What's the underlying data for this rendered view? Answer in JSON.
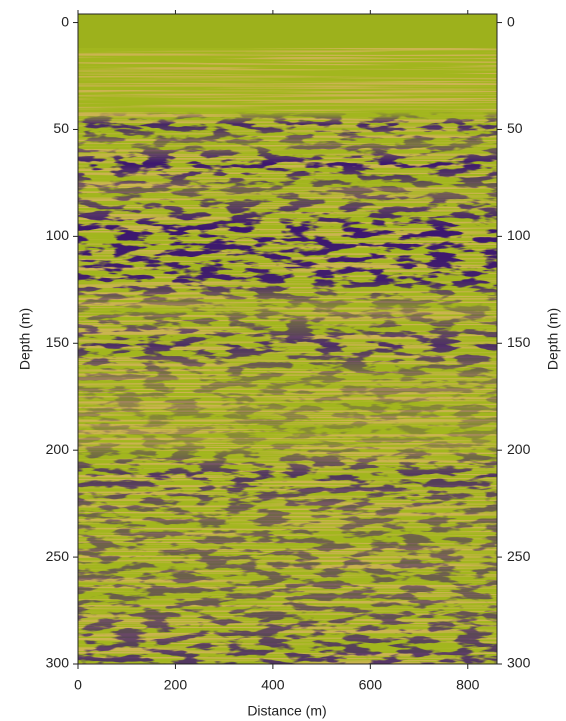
{
  "chart_data": {
    "type": "image",
    "x_label": "Distance (m)",
    "y_label": "Depth (m)",
    "xlim": [
      0,
      860
    ],
    "xticks": [
      0,
      200,
      400,
      600,
      800
    ],
    "ylim": [
      -4,
      300
    ],
    "yticks": [
      0,
      50,
      100,
      150,
      200,
      250,
      300
    ],
    "y_inverted": true,
    "y_right_axis": true
  }
}
